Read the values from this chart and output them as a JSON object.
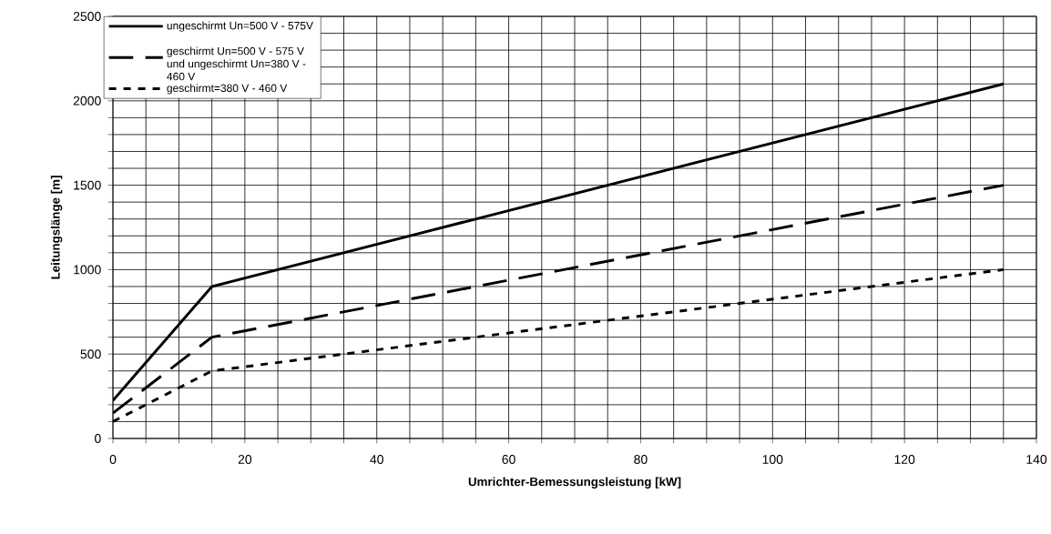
{
  "chart_data": {
    "type": "line",
    "xlabel": "Umrichter-Bemessungsleistung  [kW]",
    "ylabel": "Leitungslänge [m]",
    "x": [
      0,
      15,
      135
    ],
    "series": [
      {
        "name": "ungeschirmt Un=500 V -  575V",
        "color": "#000000",
        "line_style": "solid",
        "values": [
          225,
          900,
          2100
        ]
      },
      {
        "name": "geschirmt Un=500 V - 575 V und ungeschirmt Un=380 V - 460 V",
        "color": "#000000",
        "line_style": "dashed",
        "values": [
          150,
          600,
          1500
        ]
      },
      {
        "name": "geschirmt=380 V -  460 V",
        "color": "#000000",
        "line_style": "dotted",
        "values": [
          100,
          400,
          1000
        ]
      }
    ],
    "xlim": [
      0,
      140
    ],
    "ylim": [
      0,
      2500
    ],
    "xticks": [
      0,
      {
        "value": 5,
        "label": null
      },
      {
        "value": 10,
        "label": null
      },
      {
        "value": 15,
        "label": null
      },
      20,
      {
        "value": 25,
        "label": null
      },
      {
        "value": 30,
        "label": null
      },
      {
        "value": 35,
        "label": null
      },
      40,
      {
        "value": 45,
        "label": null
      },
      {
        "value": 50,
        "label": null
      },
      {
        "value": 55,
        "label": null
      },
      60,
      {
        "value": 65,
        "label": null
      },
      {
        "value": 70,
        "label": null
      },
      {
        "value": 75,
        "label": null
      },
      80,
      {
        "value": 85,
        "label": null
      },
      {
        "value": 90,
        "label": null
      },
      {
        "value": 95,
        "label": null
      },
      100,
      {
        "value": 105,
        "label": null
      },
      {
        "value": 110,
        "label": null
      },
      {
        "value": 115,
        "label": null
      },
      120,
      {
        "value": 125,
        "label": null
      },
      {
        "value": 130,
        "label": null
      },
      {
        "value": 135,
        "label": null
      },
      140
    ],
    "yticks": [
      0,
      {
        "value": 100,
        "label": null
      },
      {
        "value": 200,
        "label": null
      },
      {
        "value": 300,
        "label": null
      },
      {
        "value": 400,
        "label": null
      },
      500,
      {
        "value": 600,
        "label": null
      },
      {
        "value": 700,
        "label": null
      },
      {
        "value": 800,
        "label": null
      },
      {
        "value": 900,
        "label": null
      },
      1000,
      {
        "value": 1100,
        "label": null
      },
      {
        "value": 1200,
        "label": null
      },
      {
        "value": 1300,
        "label": null
      },
      {
        "value": 1400,
        "label": null
      },
      1500,
      {
        "value": 1600,
        "label": null
      },
      {
        "value": 1700,
        "label": null
      },
      {
        "value": 1800,
        "label": null
      },
      {
        "value": 1900,
        "label": null
      },
      2000,
      {
        "value": 2100,
        "label": null
      },
      {
        "value": 2200,
        "label": null
      },
      {
        "value": 2300,
        "label": null
      },
      {
        "value": 2400,
        "label": null
      },
      2500
    ],
    "grid": true,
    "legend": "top left",
    "marker": "none"
  }
}
